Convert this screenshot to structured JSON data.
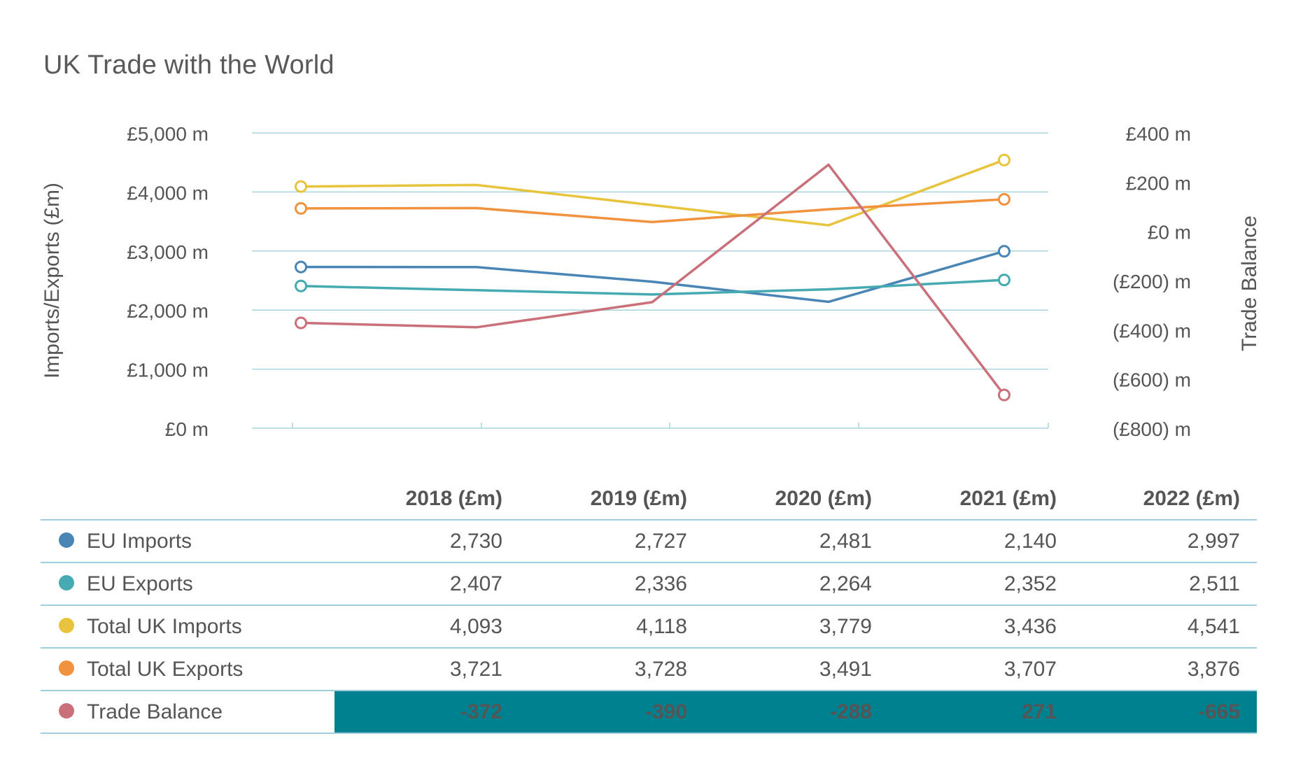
{
  "title": "UK Trade with the World",
  "chart_data": {
    "type": "line",
    "title": "UK Trade with the World",
    "categories": [
      "2018 (£m)",
      "2019 (£m)",
      "2020 (£m)",
      "2021 (£m)",
      "2022 (£m)"
    ],
    "y_left": {
      "label": "Imports/Exports (£m)",
      "range": [
        0,
        5000
      ],
      "ticks": [
        0,
        1000,
        2000,
        3000,
        4000,
        5000
      ],
      "tick_labels": [
        "£0 m",
        "£1,000 m",
        "£2,000 m",
        "£3,000 m",
        "£4,000 m",
        "£5,000 m"
      ]
    },
    "y_right": {
      "label": "Trade Balance",
      "range": [
        -800,
        400
      ],
      "ticks": [
        -800,
        -600,
        -400,
        -200,
        0,
        200,
        400
      ],
      "tick_labels": [
        "(£800) m",
        "(£600) m",
        "(£400) m",
        "(£200) m",
        "£0 m",
        "£200 m",
        "£400 m"
      ]
    },
    "grid": true,
    "series": [
      {
        "name": "EU Imports",
        "axis": "left",
        "color": "#4a86b5",
        "values": [
          2730,
          2727,
          2481,
          2140,
          2997
        ],
        "display": [
          "2,730",
          "2,727",
          "2,481",
          "2,140",
          "2,997"
        ]
      },
      {
        "name": "EU Exports",
        "axis": "left",
        "color": "#46aab2",
        "values": [
          2407,
          2336,
          2264,
          2352,
          2511
        ],
        "display": [
          "2,407",
          "2,336",
          "2,264",
          "2,352",
          "2,511"
        ]
      },
      {
        "name": "Total UK Imports",
        "axis": "left",
        "color": "#e8c43e",
        "values": [
          4093,
          4118,
          3779,
          3436,
          4541
        ],
        "display": [
          "4,093",
          "4,118",
          "3,779",
          "3,436",
          "4,541"
        ]
      },
      {
        "name": "Total UK Exports",
        "axis": "left",
        "color": "#f0923e",
        "values": [
          3721,
          3728,
          3491,
          3707,
          3876
        ],
        "display": [
          "3,721",
          "3,728",
          "3,491",
          "3,707",
          "3,876"
        ]
      },
      {
        "name": "Trade Balance",
        "axis": "right",
        "color": "#c9707a",
        "values": [
          -372,
          -390,
          -288,
          271,
          -665
        ],
        "display": [
          "-372",
          "-390",
          "-288",
          "271",
          "-665"
        ],
        "highlight": true
      }
    ]
  }
}
